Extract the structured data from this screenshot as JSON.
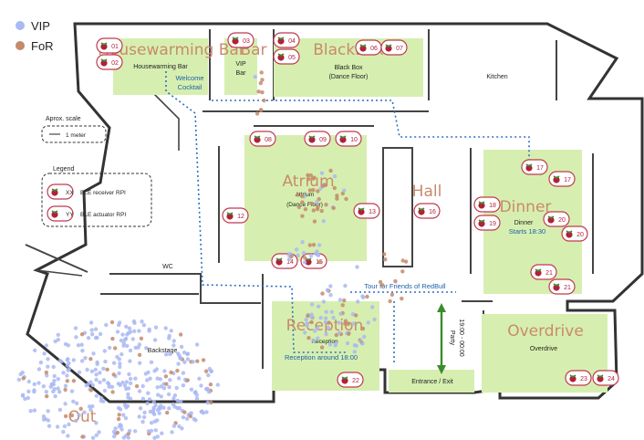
{
  "legend": {
    "series": [
      {
        "name": "VIP",
        "color": "#a9b9f2"
      },
      {
        "name": "FoR",
        "color": "#c48a6a"
      }
    ]
  },
  "scale": {
    "title": "Aprox. scale",
    "unit": "1 meter"
  },
  "map_legend": {
    "title": "Legend",
    "receiver_code": "XX",
    "receiver_label": "BLE receiver RPI",
    "actuator_code": "YY",
    "actuator_label": "BLE actuator RPI"
  },
  "zones": [
    {
      "id": "housewarming",
      "title": "Housewarming Bar"
    },
    {
      "id": "vip-bar",
      "title": "Bar"
    },
    {
      "id": "black-box",
      "title": "BlackBox"
    },
    {
      "id": "atrium",
      "title": "Atrium"
    },
    {
      "id": "hall",
      "title": "Hall"
    },
    {
      "id": "dinner",
      "title": "Dinner"
    },
    {
      "id": "reception",
      "title": "Reception"
    },
    {
      "id": "overdrive",
      "title": "Overdrive"
    },
    {
      "id": "out",
      "title": "Out"
    }
  ],
  "room_labels": [
    {
      "id": "housewarming-bar",
      "text": "Housewarming Bar"
    },
    {
      "id": "vip-bar-a",
      "text": "VIP"
    },
    {
      "id": "vip-bar-b",
      "text": "Bar"
    },
    {
      "id": "black-box-a",
      "text": "Black Box"
    },
    {
      "id": "black-box-b",
      "text": "(Dance Floor)"
    },
    {
      "id": "kitchen",
      "text": "Kitchen"
    },
    {
      "id": "atrium-a",
      "text": "Attrium"
    },
    {
      "id": "atrium-b",
      "text": "(Dance Floor)"
    },
    {
      "id": "dinner",
      "text": "Dinner"
    },
    {
      "id": "dinner-time",
      "text": "Starts 18:30"
    },
    {
      "id": "wc",
      "text": "WC"
    },
    {
      "id": "backstage",
      "text": "Backstage"
    },
    {
      "id": "reception",
      "text": "Reception"
    },
    {
      "id": "reception-time",
      "text": "Reception around 18:00"
    },
    {
      "id": "overdrive",
      "text": "Overdrive"
    },
    {
      "id": "entrance",
      "text": "Entrance / Exit"
    },
    {
      "id": "welcome-a",
      "text": "Welcome"
    },
    {
      "id": "welcome-b",
      "text": "Cocktail"
    },
    {
      "id": "tour",
      "text": "Tour for Friends of RedBull"
    },
    {
      "id": "party-a",
      "text": "Party"
    },
    {
      "id": "party-b",
      "text": "19:00 - 00:00"
    }
  ],
  "rpi_badges": [
    "01",
    "02",
    "03",
    "04",
    "05",
    "06",
    "07",
    "08",
    "09",
    "10",
    "12",
    "13",
    "14",
    "15",
    "16",
    "17",
    "17",
    "18",
    "19",
    "20",
    "20",
    "21",
    "21",
    "22",
    "23",
    "24"
  ]
}
